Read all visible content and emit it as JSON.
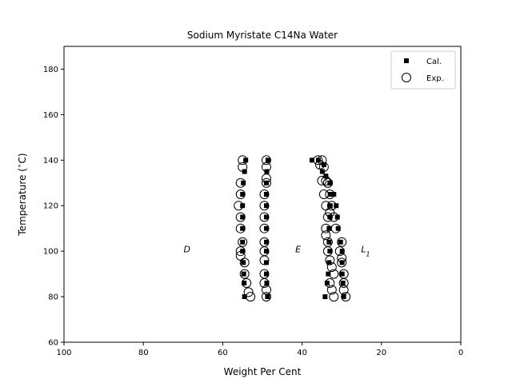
{
  "chart_data": {
    "type": "scatter",
    "title": "Sodium Myristate C14Na Water",
    "xlabel": "Weight Per Cent",
    "ylabel_parts": [
      "Temperature (",
      "∘",
      "C)"
    ],
    "xlim": [
      100,
      0
    ],
    "ylim": [
      60,
      190
    ],
    "x_ticks": [
      100,
      80,
      60,
      40,
      20,
      0
    ],
    "y_ticks": [
      60,
      80,
      100,
      120,
      140,
      160,
      180
    ],
    "legend": {
      "position": "top-right"
    },
    "region_labels": [
      {
        "text": "D",
        "x": 69,
        "y": 101
      },
      {
        "text": "E",
        "x": 41,
        "y": 101
      },
      {
        "text": "L",
        "sub": "1",
        "x": 24,
        "y": 101
      }
    ],
    "series": [
      {
        "name": "Cal.",
        "marker": "square",
        "points": [
          [
            54.5,
            80
          ],
          [
            54.6,
            86
          ],
          [
            54.7,
            90
          ],
          [
            54.8,
            95
          ],
          [
            55.0,
            100
          ],
          [
            55.0,
            104
          ],
          [
            55.0,
            110
          ],
          [
            55.0,
            115
          ],
          [
            55.0,
            120
          ],
          [
            55.0,
            125
          ],
          [
            54.8,
            130
          ],
          [
            54.5,
            135
          ],
          [
            54.2,
            140
          ],
          [
            48.7,
            80
          ],
          [
            48.9,
            86
          ],
          [
            49.0,
            90
          ],
          [
            49.0,
            95
          ],
          [
            49.0,
            100
          ],
          [
            49.0,
            104
          ],
          [
            49.0,
            110
          ],
          [
            49.0,
            115
          ],
          [
            49.0,
            120
          ],
          [
            49.0,
            125
          ],
          [
            49.0,
            130
          ],
          [
            48.9,
            135
          ],
          [
            48.6,
            140
          ],
          [
            34.2,
            80
          ],
          [
            33.7,
            86
          ],
          [
            33.4,
            90
          ],
          [
            33.2,
            95
          ],
          [
            33.0,
            100
          ],
          [
            33.2,
            104
          ],
          [
            33.2,
            110
          ],
          [
            33.0,
            115
          ],
          [
            32.9,
            120
          ],
          [
            32.9,
            125
          ],
          [
            32.9,
            130
          ],
          [
            34.9,
            135
          ],
          [
            35.9,
            140
          ],
          [
            37.5,
            140
          ],
          [
            34.5,
            138
          ],
          [
            34.0,
            133
          ],
          [
            29.5,
            80
          ],
          [
            29.7,
            86
          ],
          [
            29.9,
            90
          ],
          [
            29.9,
            95
          ],
          [
            29.9,
            100
          ],
          [
            30.3,
            104
          ],
          [
            30.9,
            110
          ],
          [
            31.1,
            115
          ],
          [
            31.4,
            120
          ],
          [
            32.0,
            125
          ],
          [
            33.0,
            130
          ]
        ]
      },
      {
        "name": "Exp.",
        "marker": "circle",
        "points": [
          [
            53.0,
            80
          ],
          [
            53.5,
            82
          ],
          [
            54.0,
            86
          ],
          [
            54.5,
            90
          ],
          [
            54.5,
            95
          ],
          [
            55.5,
            98
          ],
          [
            55.5,
            100
          ],
          [
            55.0,
            104
          ],
          [
            55.5,
            110
          ],
          [
            55.5,
            115
          ],
          [
            56.0,
            120
          ],
          [
            55.5,
            125
          ],
          [
            55.5,
            130
          ],
          [
            55.0,
            137
          ],
          [
            55.0,
            140
          ],
          [
            49.0,
            80
          ],
          [
            49.0,
            83
          ],
          [
            49.5,
            86
          ],
          [
            49.5,
            90
          ],
          [
            49.5,
            96
          ],
          [
            49.5,
            100
          ],
          [
            49.5,
            104
          ],
          [
            49.5,
            110
          ],
          [
            49.5,
            115
          ],
          [
            49.5,
            120
          ],
          [
            49.5,
            125
          ],
          [
            49.0,
            130
          ],
          [
            49.0,
            132
          ],
          [
            49.0,
            137
          ],
          [
            49.0,
            140
          ],
          [
            32.0,
            80
          ],
          [
            32.5,
            83
          ],
          [
            33.0,
            86
          ],
          [
            32.0,
            90
          ],
          [
            32.5,
            93
          ],
          [
            33.0,
            96
          ],
          [
            33.5,
            100
          ],
          [
            33.5,
            104
          ],
          [
            34.0,
            107
          ],
          [
            34.0,
            110
          ],
          [
            33.5,
            115
          ],
          [
            33.0,
            117
          ],
          [
            34.0,
            120
          ],
          [
            34.5,
            125
          ],
          [
            35.0,
            131
          ],
          [
            34.0,
            131
          ],
          [
            33.5,
            130
          ],
          [
            34.5,
            137
          ],
          [
            35.0,
            140
          ],
          [
            36.0,
            140
          ],
          [
            35.5,
            138
          ],
          [
            29.0,
            80
          ],
          [
            29.5,
            83
          ],
          [
            29.5,
            86
          ],
          [
            29.5,
            90
          ],
          [
            30.0,
            95
          ],
          [
            30.0,
            97
          ],
          [
            30.5,
            100
          ],
          [
            30.0,
            104
          ],
          [
            31.5,
            110
          ],
          [
            32.0,
            115
          ],
          [
            32.5,
            120
          ],
          [
            33.0,
            125
          ],
          [
            33.5,
            130
          ]
        ]
      }
    ]
  }
}
